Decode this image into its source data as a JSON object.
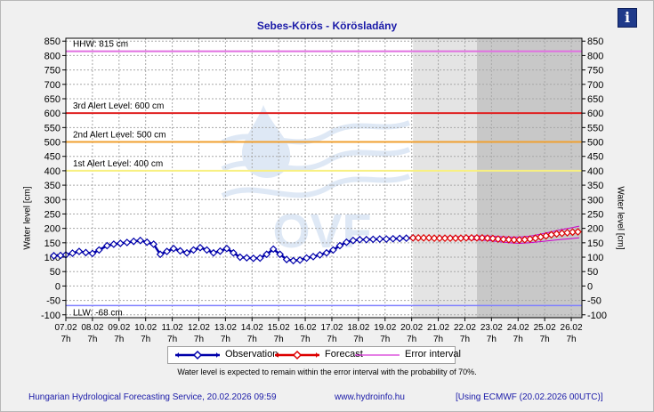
{
  "header": {
    "title": "Sebes-Körös - Körösladány",
    "info_icon_glyph": "i"
  },
  "axes": {
    "ylabel_left": "Water level [cm]",
    "ylabel_right": "Water level [cm]"
  },
  "legend": {
    "observation": "Observation",
    "forecast": "Forecast",
    "error": "Error interval"
  },
  "note": "Water level is expected to remain within the error interval with the probability of 70%.",
  "footer": {
    "left": "Hungarian Hydrological Forecasting Service, 20.02.2026 09:59",
    "mid": "www.hydroinfo.hu",
    "right": "[Using ECMWF (20.02.2026  00UTC)]"
  },
  "colors": {
    "observation": "#0000aa",
    "forecast": "#dd0000",
    "error": "#cc00cc",
    "hhw": "#e070e0",
    "alert3": "#e02020",
    "alert2": "#f0a030",
    "alert1": "#f8f080",
    "llw": "#8080ff",
    "forecast_bg_light": "#e4e4e4",
    "forecast_bg_dark": "#c8c8c8"
  },
  "chart_data": {
    "type": "line",
    "title": "Sebes-Körös - Körösladány",
    "ylabel": "Water level [cm]",
    "ylim": [
      -110,
      860
    ],
    "yticks": [
      -100,
      -50,
      0,
      50,
      100,
      150,
      200,
      250,
      300,
      350,
      400,
      450,
      500,
      550,
      600,
      650,
      700,
      750,
      800,
      850
    ],
    "xlim": [
      0,
      19.4
    ],
    "x_date_ticks": [
      "07.02",
      "08.02",
      "09.02",
      "10.02",
      "11.02",
      "12.02",
      "13.02",
      "14.02",
      "15.02",
      "16.02",
      "17.02",
      "18.02",
      "19.02",
      "20.02",
      "21.02",
      "22.02",
      "23.02",
      "24.02",
      "25.02",
      "26.02"
    ],
    "x_time_label": "7h",
    "thresholds": [
      {
        "label": "HHW: 815 cm",
        "value": 815
      },
      {
        "label": "3rd Alert Level: 600 cm",
        "value": 600
      },
      {
        "label": "2nd Alert Level: 500 cm",
        "value": 500
      },
      {
        "label": "1st Alert Level: 400 cm",
        "value": 400
      },
      {
        "label": "LLW: -68 cm",
        "value": -68
      }
    ],
    "forecast_start_x": 13.05,
    "ecmwf_shade_start_x": 15.45,
    "grid": true,
    "legend_position": "bottom",
    "series": [
      {
        "name": "Observation",
        "x": [
          -0.45,
          -0.2,
          0.0,
          0.25,
          0.5,
          0.75,
          1.0,
          1.25,
          1.55,
          1.8,
          2.05,
          2.3,
          2.55,
          2.8,
          3.05,
          3.3,
          3.55,
          3.8,
          4.05,
          4.3,
          4.55,
          4.8,
          5.05,
          5.3,
          5.55,
          5.8,
          6.05,
          6.3,
          6.55,
          6.8,
          7.05,
          7.3,
          7.55,
          7.8,
          8.05,
          8.3,
          8.55,
          8.8,
          9.05,
          9.3,
          9.55,
          9.8,
          10.05,
          10.3,
          10.55,
          10.8,
          11.05,
          11.3,
          11.55,
          11.8,
          12.05,
          12.3,
          12.55,
          12.8,
          13.05
        ],
        "y": [
          105,
          106,
          108,
          114,
          120,
          116,
          113,
          125,
          140,
          145,
          148,
          151,
          155,
          158,
          152,
          145,
          110,
          120,
          130,
          122,
          115,
          125,
          133,
          125,
          115,
          121,
          130,
          115,
          100,
          98,
          96,
          97,
          110,
          128,
          110,
          92,
          88,
          90,
          97,
          102,
          108,
          115,
          125,
          140,
          152,
          158,
          161,
          161,
          162,
          163,
          163,
          164,
          165,
          166,
          167
        ]
      },
      {
        "name": "Forecast",
        "x": [
          13.05,
          13.25,
          13.45,
          13.65,
          13.85,
          14.05,
          14.25,
          14.45,
          14.65,
          14.85,
          15.05,
          15.25,
          15.45,
          15.65,
          15.85,
          16.05,
          16.25,
          16.45,
          16.65,
          16.85,
          17.05,
          17.25,
          17.45,
          17.65,
          17.85,
          18.05,
          18.25,
          18.45,
          18.65,
          18.85,
          19.05,
          19.25
        ],
        "y": [
          167,
          167,
          167,
          167,
          166,
          166,
          166,
          166,
          166,
          166,
          167,
          167,
          167,
          167,
          166,
          165,
          163,
          162,
          161,
          160,
          160,
          161,
          163,
          166,
          170,
          174,
          178,
          181,
          183,
          185,
          187,
          188
        ]
      },
      {
        "name": "Error interval",
        "x": [
          13.05,
          13.6,
          14.05,
          14.6,
          15.05,
          15.45,
          15.85,
          16.25,
          16.65,
          17.05,
          17.45,
          17.85,
          18.25,
          18.65,
          19.05,
          19.3
        ],
        "y": [
          169,
          169,
          170,
          171,
          172,
          174,
          174,
          172,
          170,
          170,
          173,
          180,
          188,
          196,
          203,
          208
        ]
      },
      {
        "name": "Error interval",
        "x": [
          13.05,
          13.6,
          14.05,
          14.6,
          15.05,
          15.45,
          15.85,
          16.25,
          16.65,
          17.05,
          17.45,
          17.85,
          18.25,
          18.65,
          19.05,
          19.3
        ],
        "y": [
          165,
          165,
          164,
          163,
          162,
          160,
          158,
          154,
          150,
          148,
          150,
          154,
          158,
          162,
          165,
          167
        ]
      }
    ]
  }
}
